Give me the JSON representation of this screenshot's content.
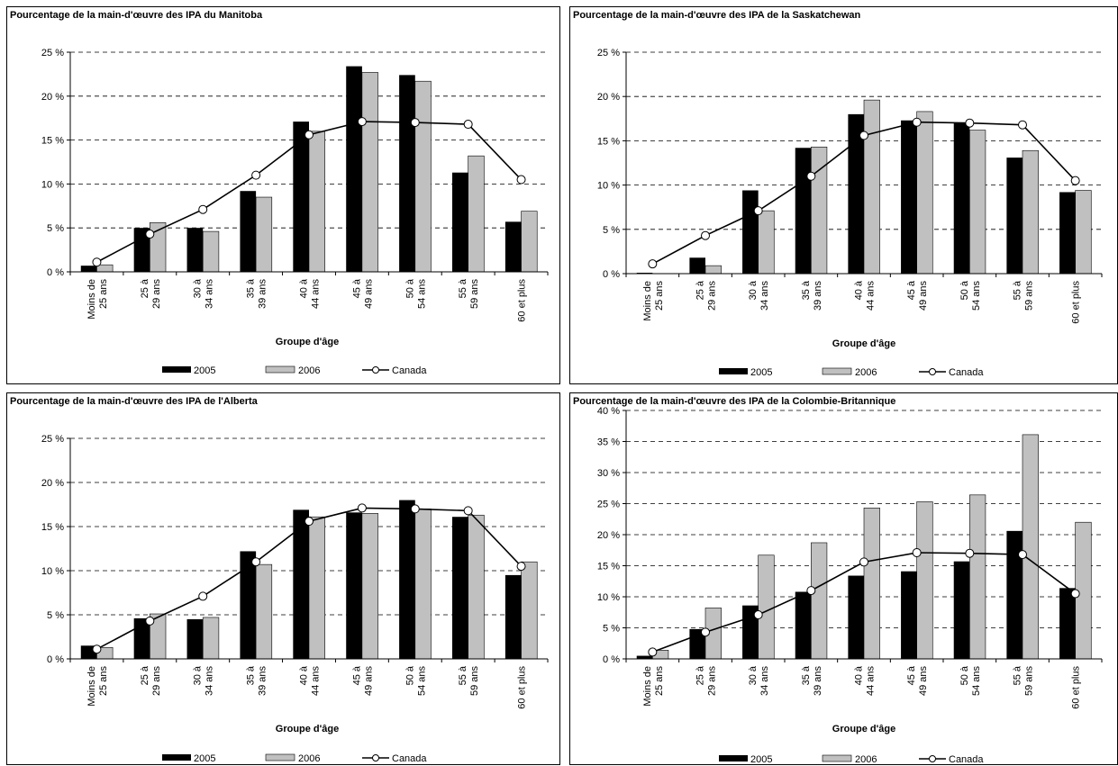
{
  "legend": {
    "s2005": "2005",
    "s2006": "2006",
    "canada": "Canada"
  },
  "colors": {
    "s2005": "#000000",
    "s2006": "#c0c0c0",
    "canada_line": "#000000",
    "canada_marker": "#ffffff"
  },
  "chart_data": [
    {
      "type": "bar",
      "title": "Pourcentage de la main-d'œuvre des IPA du Manitoba",
      "xlabel": "Groupe d'âge",
      "ylabel": "",
      "categories": [
        [
          "Moins de",
          "25 ans"
        ],
        [
          "25 à",
          "29 ans"
        ],
        [
          "30 à",
          "34 ans"
        ],
        [
          "35 à",
          "39 ans"
        ],
        [
          "40 à",
          "44 ans"
        ],
        [
          "45 à",
          "49 ans"
        ],
        [
          "50 à",
          "54 ans"
        ],
        [
          "55 à",
          "59 ans"
        ],
        [
          "60 et plus"
        ]
      ],
      "ylim": [
        0,
        25
      ],
      "yticks": [
        0,
        5,
        10,
        15,
        20,
        25
      ],
      "ytick_labels": [
        "0 %",
        "5 %",
        "10 %",
        "15 %",
        "20 %",
        "25 %"
      ],
      "grid": true,
      "legend_position": "bottom",
      "series": [
        {
          "name": "2005",
          "type": "bar",
          "values": [
            0.7,
            5.0,
            5.0,
            9.2,
            17.1,
            23.4,
            22.4,
            11.3,
            5.7
          ]
        },
        {
          "name": "2006",
          "type": "bar",
          "values": [
            0.8,
            5.6,
            4.6,
            8.5,
            16.0,
            22.7,
            21.7,
            13.2,
            6.9
          ]
        },
        {
          "name": "Canada",
          "type": "line",
          "values": [
            1.1,
            4.3,
            7.1,
            11.0,
            15.6,
            17.1,
            17.0,
            16.8,
            10.5
          ]
        }
      ]
    },
    {
      "type": "bar",
      "title": "Pourcentage de la main-d'œuvre des IPA de la Saskatchewan",
      "xlabel": "Groupe d'âge",
      "ylabel": "",
      "categories": [
        [
          "Moins de",
          "25 ans"
        ],
        [
          "25 à",
          "29 ans"
        ],
        [
          "30 à",
          "34 ans"
        ],
        [
          "35 à",
          "39 ans"
        ],
        [
          "40 à",
          "44 ans"
        ],
        [
          "45 à",
          "49 ans"
        ],
        [
          "50 à",
          "54 ans"
        ],
        [
          "55 à",
          "59 ans"
        ],
        [
          "60 et plus"
        ]
      ],
      "ylim": [
        0,
        25
      ],
      "yticks": [
        0,
        5,
        10,
        15,
        20,
        25
      ],
      "ytick_labels": [
        "0 %",
        "5 %",
        "10 %",
        "15 %",
        "20 %",
        "25 %"
      ],
      "grid": true,
      "legend_position": "bottom",
      "series": [
        {
          "name": "2005",
          "type": "bar",
          "values": [
            0.1,
            1.8,
            9.4,
            14.2,
            18.0,
            17.3,
            17.0,
            13.1,
            9.2
          ]
        },
        {
          "name": "2006",
          "type": "bar",
          "values": [
            0.0,
            0.9,
            7.1,
            14.3,
            19.6,
            18.3,
            16.2,
            13.9,
            9.4
          ]
        },
        {
          "name": "Canada",
          "type": "line",
          "values": [
            1.1,
            4.3,
            7.1,
            11.0,
            15.6,
            17.1,
            17.0,
            16.8,
            10.5
          ]
        }
      ]
    },
    {
      "type": "bar",
      "title": "Pourcentage de la main-d'œuvre des IPA de l'Alberta",
      "xlabel": "Groupe d'âge",
      "ylabel": "",
      "categories": [
        [
          "Moins de",
          "25 ans"
        ],
        [
          "25 à",
          "29 ans"
        ],
        [
          "30 à",
          "34 ans"
        ],
        [
          "35 à",
          "39 ans"
        ],
        [
          "40 à",
          "44 ans"
        ],
        [
          "45 à",
          "49 ans"
        ],
        [
          "50 à",
          "54 ans"
        ],
        [
          "55 à",
          "59 ans"
        ],
        [
          "60 et plus"
        ]
      ],
      "ylim": [
        0,
        25
      ],
      "yticks": [
        0,
        5,
        10,
        15,
        20,
        25
      ],
      "ytick_labels": [
        "0 %",
        "5 %",
        "10 %",
        "15 %",
        "20 %",
        "25 %"
      ],
      "grid": true,
      "legend_position": "bottom",
      "series": [
        {
          "name": "2005",
          "type": "bar",
          "values": [
            1.5,
            4.6,
            4.5,
            12.2,
            16.9,
            16.6,
            18.0,
            16.1,
            9.5
          ]
        },
        {
          "name": "2006",
          "type": "bar",
          "values": [
            1.3,
            5.1,
            4.7,
            10.7,
            16.1,
            16.5,
            17.0,
            16.3,
            11.0
          ]
        },
        {
          "name": "Canada",
          "type": "line",
          "values": [
            1.1,
            4.3,
            7.1,
            11.0,
            15.6,
            17.1,
            17.0,
            16.8,
            10.5
          ]
        }
      ]
    },
    {
      "type": "bar",
      "title": "Pourcentage de la main-d'œuvre des IPA de la Colombie-Britannique",
      "xlabel": "Groupe d'âge",
      "ylabel": "",
      "categories": [
        [
          "Moins de",
          "25 ans"
        ],
        [
          "25 à",
          "29 ans"
        ],
        [
          "30 à",
          "34 ans"
        ],
        [
          "35 à",
          "39 ans"
        ],
        [
          "40 à",
          "44 ans"
        ],
        [
          "45 à",
          "49 ans"
        ],
        [
          "50 à",
          "54 ans"
        ],
        [
          "55 à",
          "59 ans"
        ],
        [
          "60 et plus"
        ]
      ],
      "ylim": [
        0,
        40
      ],
      "yticks": [
        0,
        5,
        10,
        15,
        20,
        25,
        30,
        35,
        40
      ],
      "ytick_labels": [
        "0 %",
        "5 %",
        "10 %",
        "15 %",
        "20 %",
        "25 %",
        "30 %",
        "35 %",
        "40 %"
      ],
      "grid": true,
      "legend_position": "bottom",
      "series": [
        {
          "name": "2005",
          "type": "bar",
          "values": [
            0.5,
            4.8,
            8.6,
            10.8,
            13.4,
            14.1,
            15.7,
            20.6,
            11.4
          ]
        },
        {
          "name": "2006",
          "type": "bar",
          "values": [
            1.4,
            8.2,
            16.7,
            18.7,
            24.3,
            25.3,
            26.4,
            36.1,
            22.0
          ]
        },
        {
          "name": "Canada",
          "type": "line",
          "values": [
            1.1,
            4.3,
            7.1,
            11.0,
            15.6,
            17.1,
            17.0,
            16.8,
            10.5
          ]
        }
      ]
    }
  ]
}
